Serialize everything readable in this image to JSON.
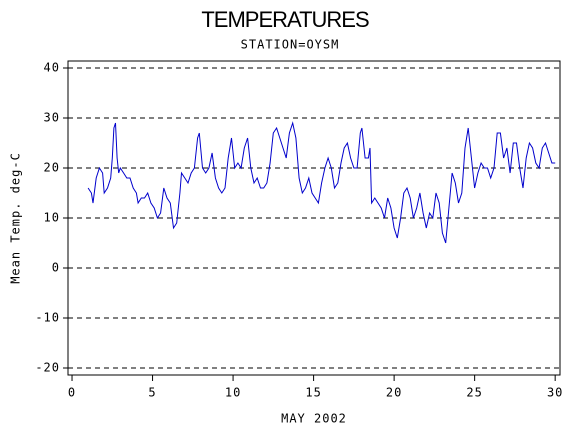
{
  "chart_data": {
    "type": "line",
    "title": "TEMPERATURES",
    "subtitle": "STATION=OYSM",
    "x_label": "MAY 2002",
    "y_label": "Mean Temp. deg-C",
    "xlim": [
      -0.25,
      30.3
    ],
    "ylim": [
      -21.4,
      41.4
    ],
    "xticks": [
      0,
      5,
      10,
      15,
      20,
      25,
      30
    ],
    "yticks": [
      -20,
      -10,
      0,
      10,
      20,
      30,
      40
    ],
    "grid": true,
    "series": [
      {
        "name": "Mean Temp",
        "color": "#0000cc",
        "x": [
          1.0,
          1.2,
          1.3,
          1.5,
          1.7,
          1.9,
          2.0,
          2.2,
          2.4,
          2.5,
          2.6,
          2.7,
          2.8,
          2.9,
          3.0,
          3.2,
          3.4,
          3.6,
          3.8,
          4.0,
          4.1,
          4.3,
          4.5,
          4.7,
          4.9,
          5.1,
          5.3,
          5.5,
          5.7,
          5.9,
          6.1,
          6.3,
          6.5,
          6.7,
          6.8,
          7.0,
          7.2,
          7.4,
          7.6,
          7.8,
          7.9,
          8.1,
          8.3,
          8.5,
          8.7,
          8.9,
          9.1,
          9.3,
          9.5,
          9.7,
          9.9,
          10.1,
          10.3,
          10.5,
          10.7,
          10.9,
          11.1,
          11.3,
          11.5,
          11.7,
          11.9,
          12.1,
          12.3,
          12.5,
          12.7,
          12.9,
          13.1,
          13.3,
          13.5,
          13.7,
          13.9,
          14.1,
          14.3,
          14.5,
          14.7,
          14.9,
          15.1,
          15.3,
          15.5,
          15.7,
          15.9,
          16.1,
          16.3,
          16.5,
          16.7,
          16.9,
          17.1,
          17.3,
          17.5,
          17.7,
          17.9,
          18.0,
          18.2,
          18.4,
          18.5,
          18.6,
          18.8,
          19.0,
          19.2,
          19.4,
          19.6,
          19.8,
          20.0,
          20.2,
          20.4,
          20.6,
          20.8,
          21.0,
          21.2,
          21.4,
          21.6,
          21.8,
          22.0,
          22.2,
          22.4,
          22.6,
          22.8,
          23.0,
          23.2,
          23.4,
          23.6,
          23.8,
          24.0,
          24.2,
          24.4,
          24.6,
          24.8,
          25.0,
          25.2,
          25.4,
          25.6,
          25.8,
          26.0,
          26.2,
          26.4,
          26.6,
          26.8,
          27.0,
          27.2,
          27.4,
          27.6,
          27.8,
          28.0,
          28.2,
          28.4,
          28.6,
          28.8,
          29.0,
          29.2,
          29.4,
          29.6,
          29.8,
          30.0
        ],
        "values": [
          16,
          15,
          13,
          18,
          20,
          19,
          15,
          16,
          18,
          22,
          28,
          29,
          22,
          19,
          20,
          19,
          18,
          18,
          16,
          15,
          13,
          14,
          14,
          15,
          13,
          12,
          10,
          11,
          16,
          14,
          13,
          8,
          9,
          15,
          19,
          18,
          17,
          19,
          20,
          26,
          27,
          20,
          19,
          20,
          23,
          18,
          16,
          15,
          16,
          22,
          26,
          20,
          21,
          20,
          24,
          26,
          20,
          17,
          18,
          16,
          16,
          17,
          21,
          27,
          28,
          26,
          24,
          22,
          27,
          29,
          26,
          18,
          15,
          16,
          18,
          15,
          14,
          13,
          17,
          20,
          22,
          20,
          16,
          17,
          21,
          24,
          25,
          22,
          20,
          20,
          27,
          28,
          22,
          22,
          24,
          13,
          14,
          13,
          12,
          10,
          14,
          12,
          8,
          6,
          10,
          15,
          16,
          14,
          10,
          12,
          15,
          11,
          8,
          11,
          10,
          15,
          13,
          7,
          5,
          12,
          19,
          17,
          13,
          15,
          24,
          28,
          22,
          16,
          19,
          21,
          20,
          20,
          18,
          20,
          27,
          27,
          22,
          24,
          19,
          25,
          25,
          20,
          16,
          22,
          25,
          24,
          21,
          20,
          24,
          25,
          23,
          21,
          21
        ]
      }
    ]
  }
}
